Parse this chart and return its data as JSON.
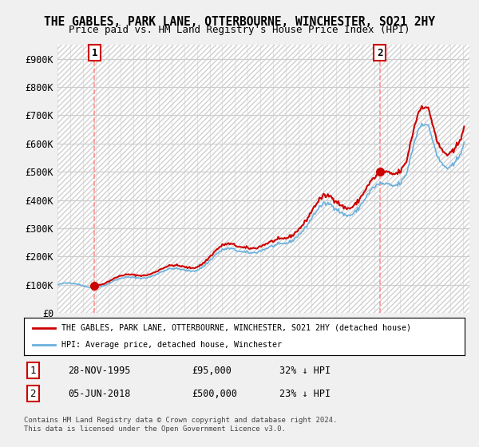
{
  "title": "THE GABLES, PARK LANE, OTTERBOURNE, WINCHESTER, SO21 2HY",
  "subtitle": "Price paid vs. HM Land Registry's House Price Index (HPI)",
  "sale1_label": "28-NOV-1995",
  "sale1_price": 95000,
  "sale1_hpi": "32% ↓ HPI",
  "sale1_x": 1995.91,
  "sale2_label": "05-JUN-2018",
  "sale2_price": 500000,
  "sale2_hpi": "23% ↓ HPI",
  "sale2_x": 2018.43,
  "hpi_line_color": "#6ab0de",
  "price_line_color": "#cc0000",
  "marker_color": "#cc0000",
  "annotation_box_color": "#cc0000",
  "legend_label_price": "THE GABLES, PARK LANE, OTTERBOURNE, WINCHESTER, SO21 2HY (detached house)",
  "legend_label_hpi": "HPI: Average price, detached house, Winchester",
  "footer1": "Contains HM Land Registry data © Crown copyright and database right 2024.",
  "footer2": "This data is licensed under the Open Government Licence v3.0.",
  "ylim_max": 950000,
  "ylim_min": 0,
  "xlim_min": 1993,
  "xlim_max": 2025.5,
  "background_color": "#f0f0f0",
  "plot_bg_color": "#ffffff",
  "grid_color": "#cccccc"
}
